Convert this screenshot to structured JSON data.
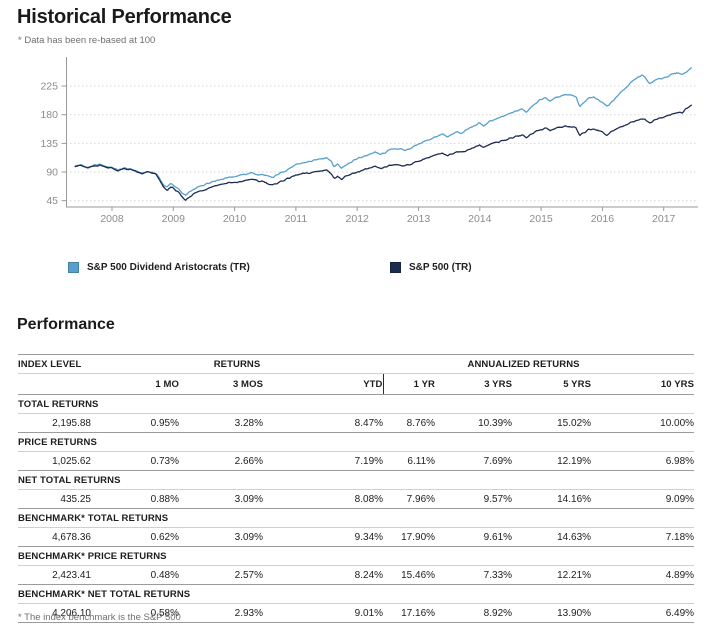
{
  "header": {
    "title": "Historical Performance",
    "note": "* Data has been re-based at 100"
  },
  "chart_data": {
    "type": "line",
    "title": "Historical Performance",
    "note": "Data has been re-based at 100",
    "legend_position": "bottom",
    "grid": true,
    "colors": {
      "axis": "#9a9a9a",
      "grid": "#d6d6d6",
      "tick_label": "#8c8c8c"
    },
    "x_axis": {
      "years": [
        2008,
        2009,
        2010,
        2011,
        2012,
        2013,
        2014,
        2015,
        2016,
        2017
      ],
      "range": [
        2007.4,
        2017.5
      ]
    },
    "y_axis": {
      "ticks": [
        45,
        90,
        135,
        180,
        225
      ],
      "range": [
        35,
        272
      ]
    },
    "series": [
      {
        "name": "S&P 500 Dividend Aristocrats (TR)",
        "color": "#56A0CD",
        "points": [
          [
            2007.4,
            100
          ],
          [
            2007.5,
            101
          ],
          [
            2007.6,
            97
          ],
          [
            2007.7,
            100
          ],
          [
            2007.8,
            102
          ],
          [
            2007.9,
            99
          ],
          [
            2008.0,
            97
          ],
          [
            2008.1,
            93
          ],
          [
            2008.2,
            96
          ],
          [
            2008.3,
            95
          ],
          [
            2008.4,
            91
          ],
          [
            2008.5,
            88
          ],
          [
            2008.58,
            91
          ],
          [
            2008.66,
            89
          ],
          [
            2008.72,
            88
          ],
          [
            2008.78,
            79
          ],
          [
            2008.84,
            70
          ],
          [
            2008.9,
            66
          ],
          [
            2008.96,
            72
          ],
          [
            2009.02,
            68
          ],
          [
            2009.08,
            64
          ],
          [
            2009.14,
            57
          ],
          [
            2009.2,
            53
          ],
          [
            2009.26,
            58
          ],
          [
            2009.32,
            62
          ],
          [
            2009.4,
            66
          ],
          [
            2009.5,
            70
          ],
          [
            2009.6,
            74
          ],
          [
            2009.7,
            77
          ],
          [
            2009.8,
            79
          ],
          [
            2009.9,
            82
          ],
          [
            2010.0,
            83
          ],
          [
            2010.1,
            85
          ],
          [
            2010.2,
            87
          ],
          [
            2010.3,
            89
          ],
          [
            2010.38,
            85
          ],
          [
            2010.46,
            86
          ],
          [
            2010.54,
            83
          ],
          [
            2010.62,
            81
          ],
          [
            2010.7,
            86
          ],
          [
            2010.8,
            91
          ],
          [
            2010.9,
            96
          ],
          [
            2011.0,
            101
          ],
          [
            2011.1,
            104
          ],
          [
            2011.2,
            106
          ],
          [
            2011.3,
            108
          ],
          [
            2011.4,
            111
          ],
          [
            2011.5,
            113
          ],
          [
            2011.57,
            108
          ],
          [
            2011.62,
            98
          ],
          [
            2011.68,
            103
          ],
          [
            2011.74,
            96
          ],
          [
            2011.8,
            101
          ],
          [
            2011.87,
            104
          ],
          [
            2011.94,
            108
          ],
          [
            2012.0,
            111
          ],
          [
            2012.1,
            114
          ],
          [
            2012.2,
            118
          ],
          [
            2012.3,
            121
          ],
          [
            2012.38,
            117
          ],
          [
            2012.46,
            121
          ],
          [
            2012.54,
            125
          ],
          [
            2012.62,
            127
          ],
          [
            2012.7,
            126
          ],
          [
            2012.78,
            124
          ],
          [
            2012.86,
            127
          ],
          [
            2012.94,
            131
          ],
          [
            2013.0,
            134
          ],
          [
            2013.1,
            138
          ],
          [
            2013.2,
            142
          ],
          [
            2013.3,
            146
          ],
          [
            2013.4,
            149
          ],
          [
            2013.47,
            144
          ],
          [
            2013.54,
            149
          ],
          [
            2013.62,
            153
          ],
          [
            2013.7,
            151
          ],
          [
            2013.78,
            156
          ],
          [
            2013.86,
            160
          ],
          [
            2013.94,
            164
          ],
          [
            2014.0,
            167
          ],
          [
            2014.06,
            162
          ],
          [
            2014.14,
            168
          ],
          [
            2014.22,
            172
          ],
          [
            2014.3,
            174
          ],
          [
            2014.4,
            178
          ],
          [
            2014.5,
            182
          ],
          [
            2014.6,
            186
          ],
          [
            2014.7,
            189
          ],
          [
            2014.76,
            184
          ],
          [
            2014.84,
            193
          ],
          [
            2014.92,
            199
          ],
          [
            2015.0,
            204
          ],
          [
            2015.08,
            207
          ],
          [
            2015.15,
            201
          ],
          [
            2015.22,
            206
          ],
          [
            2015.3,
            209
          ],
          [
            2015.4,
            212
          ],
          [
            2015.5,
            211
          ],
          [
            2015.57,
            208
          ],
          [
            2015.63,
            192
          ],
          [
            2015.7,
            199
          ],
          [
            2015.78,
            206
          ],
          [
            2015.86,
            207
          ],
          [
            2015.94,
            203
          ],
          [
            2016.0,
            200
          ],
          [
            2016.07,
            193
          ],
          [
            2016.14,
            199
          ],
          [
            2016.22,
            207
          ],
          [
            2016.3,
            215
          ],
          [
            2016.4,
            224
          ],
          [
            2016.5,
            233
          ],
          [
            2016.58,
            239
          ],
          [
            2016.64,
            242
          ],
          [
            2016.7,
            238
          ],
          [
            2016.77,
            228
          ],
          [
            2016.84,
            233
          ],
          [
            2016.92,
            236
          ],
          [
            2017.0,
            238
          ],
          [
            2017.08,
            241
          ],
          [
            2017.16,
            244
          ],
          [
            2017.24,
            246
          ],
          [
            2017.3,
            243
          ],
          [
            2017.36,
            247
          ],
          [
            2017.42,
            251
          ],
          [
            2017.45,
            253
          ]
        ]
      },
      {
        "name": "S&P 500 (TR)",
        "color": "#1C2C50",
        "points": [
          [
            2007.4,
            100
          ],
          [
            2007.5,
            100
          ],
          [
            2007.6,
            96
          ],
          [
            2007.7,
            99
          ],
          [
            2007.8,
            101
          ],
          [
            2007.9,
            98
          ],
          [
            2008.0,
            96
          ],
          [
            2008.1,
            92
          ],
          [
            2008.2,
            95
          ],
          [
            2008.3,
            94
          ],
          [
            2008.4,
            90
          ],
          [
            2008.5,
            87
          ],
          [
            2008.58,
            90
          ],
          [
            2008.66,
            88
          ],
          [
            2008.72,
            87
          ],
          [
            2008.78,
            76
          ],
          [
            2008.84,
            66
          ],
          [
            2008.9,
            61
          ],
          [
            2008.96,
            67
          ],
          [
            2009.02,
            63
          ],
          [
            2009.08,
            58
          ],
          [
            2009.14,
            51
          ],
          [
            2009.2,
            46
          ],
          [
            2009.26,
            51
          ],
          [
            2009.32,
            55
          ],
          [
            2009.4,
            59
          ],
          [
            2009.5,
            62
          ],
          [
            2009.6,
            66
          ],
          [
            2009.7,
            69
          ],
          [
            2009.8,
            71
          ],
          [
            2009.9,
            73
          ],
          [
            2010.0,
            73
          ],
          [
            2010.1,
            75
          ],
          [
            2010.2,
            77
          ],
          [
            2010.3,
            79
          ],
          [
            2010.38,
            75
          ],
          [
            2010.46,
            76
          ],
          [
            2010.54,
            72
          ],
          [
            2010.62,
            69
          ],
          [
            2010.7,
            73
          ],
          [
            2010.8,
            77
          ],
          [
            2010.9,
            81
          ],
          [
            2011.0,
            85
          ],
          [
            2011.1,
            87
          ],
          [
            2011.2,
            88
          ],
          [
            2011.3,
            90
          ],
          [
            2011.4,
            92
          ],
          [
            2011.5,
            93
          ],
          [
            2011.57,
            89
          ],
          [
            2011.62,
            80
          ],
          [
            2011.68,
            84
          ],
          [
            2011.74,
            78
          ],
          [
            2011.8,
            82
          ],
          [
            2011.87,
            85
          ],
          [
            2011.94,
            88
          ],
          [
            2012.0,
            90
          ],
          [
            2012.1,
            93
          ],
          [
            2012.2,
            96
          ],
          [
            2012.3,
            98
          ],
          [
            2012.38,
            95
          ],
          [
            2012.46,
            98
          ],
          [
            2012.54,
            100
          ],
          [
            2012.62,
            102
          ],
          [
            2012.7,
            101
          ],
          [
            2012.78,
            100
          ],
          [
            2012.86,
            102
          ],
          [
            2012.94,
            105
          ],
          [
            2013.0,
            107
          ],
          [
            2013.1,
            111
          ],
          [
            2013.2,
            114
          ],
          [
            2013.3,
            117
          ],
          [
            2013.4,
            119
          ],
          [
            2013.47,
            116
          ],
          [
            2013.54,
            119
          ],
          [
            2013.62,
            122
          ],
          [
            2013.7,
            121
          ],
          [
            2013.78,
            124
          ],
          [
            2013.86,
            127
          ],
          [
            2013.94,
            130
          ],
          [
            2014.0,
            132
          ],
          [
            2014.06,
            128
          ],
          [
            2014.14,
            133
          ],
          [
            2014.22,
            136
          ],
          [
            2014.3,
            137
          ],
          [
            2014.4,
            140
          ],
          [
            2014.5,
            143
          ],
          [
            2014.6,
            146
          ],
          [
            2014.7,
            148
          ],
          [
            2014.76,
            144
          ],
          [
            2014.84,
            150
          ],
          [
            2014.92,
            154
          ],
          [
            2015.0,
            157
          ],
          [
            2015.08,
            159
          ],
          [
            2015.15,
            155
          ],
          [
            2015.22,
            158
          ],
          [
            2015.3,
            160
          ],
          [
            2015.4,
            162
          ],
          [
            2015.5,
            161
          ],
          [
            2015.57,
            159
          ],
          [
            2015.63,
            147
          ],
          [
            2015.7,
            152
          ],
          [
            2015.78,
            157
          ],
          [
            2015.86,
            158
          ],
          [
            2015.94,
            155
          ],
          [
            2016.0,
            153
          ],
          [
            2016.07,
            148
          ],
          [
            2016.14,
            153
          ],
          [
            2016.22,
            157
          ],
          [
            2016.3,
            161
          ],
          [
            2016.4,
            165
          ],
          [
            2016.5,
            169
          ],
          [
            2016.58,
            172
          ],
          [
            2016.64,
            174
          ],
          [
            2016.7,
            172
          ],
          [
            2016.77,
            167
          ],
          [
            2016.84,
            171
          ],
          [
            2016.92,
            174
          ],
          [
            2017.0,
            176
          ],
          [
            2017.08,
            179
          ],
          [
            2017.16,
            182
          ],
          [
            2017.24,
            184
          ],
          [
            2017.3,
            182
          ],
          [
            2017.36,
            188
          ],
          [
            2017.42,
            193
          ],
          [
            2017.45,
            196
          ]
        ]
      }
    ]
  },
  "performance": {
    "heading": "Performance",
    "footnote": "* The index benchmark is the S&P 500",
    "header": {
      "col0": "INDEX LEVEL",
      "returns_group": "RETURNS",
      "annualized_group": "ANNUALIZED RETURNS",
      "columns": [
        "1 MO",
        "3 MOS",
        "YTD",
        "1 YR",
        "3 YRS",
        "5 YRS",
        "10 YRS"
      ]
    },
    "rows": [
      {
        "label": "TOTAL RETURNS",
        "index_level": "2,195.88",
        "values": [
          "0.95%",
          "3.28%",
          "8.47%",
          "8.76%",
          "10.39%",
          "15.02%",
          "10.00%"
        ]
      },
      {
        "label": "PRICE RETURNS",
        "index_level": "1,025.62",
        "values": [
          "0.73%",
          "2.66%",
          "7.19%",
          "6.11%",
          "7.69%",
          "12.19%",
          "6.98%"
        ]
      },
      {
        "label": "NET TOTAL RETURNS",
        "index_level": "435.25",
        "values": [
          "0.88%",
          "3.09%",
          "8.08%",
          "7.96%",
          "9.57%",
          "14.16%",
          "9.09%"
        ]
      },
      {
        "label": "BENCHMARK* TOTAL RETURNS",
        "index_level": "4,678.36",
        "values": [
          "0.62%",
          "3.09%",
          "9.34%",
          "17.90%",
          "9.61%",
          "14.63%",
          "7.18%"
        ]
      },
      {
        "label": "BENCHMARK* PRICE RETURNS",
        "index_level": "2,423.41",
        "values": [
          "0.48%",
          "2.57%",
          "8.24%",
          "15.46%",
          "7.33%",
          "12.21%",
          "4.89%"
        ]
      },
      {
        "label": "BENCHMARK* NET TOTAL RETURNS",
        "index_level": "4,206.10",
        "values": [
          "0.58%",
          "2.93%",
          "9.01%",
          "17.16%",
          "8.92%",
          "13.90%",
          "6.49%"
        ]
      }
    ]
  }
}
